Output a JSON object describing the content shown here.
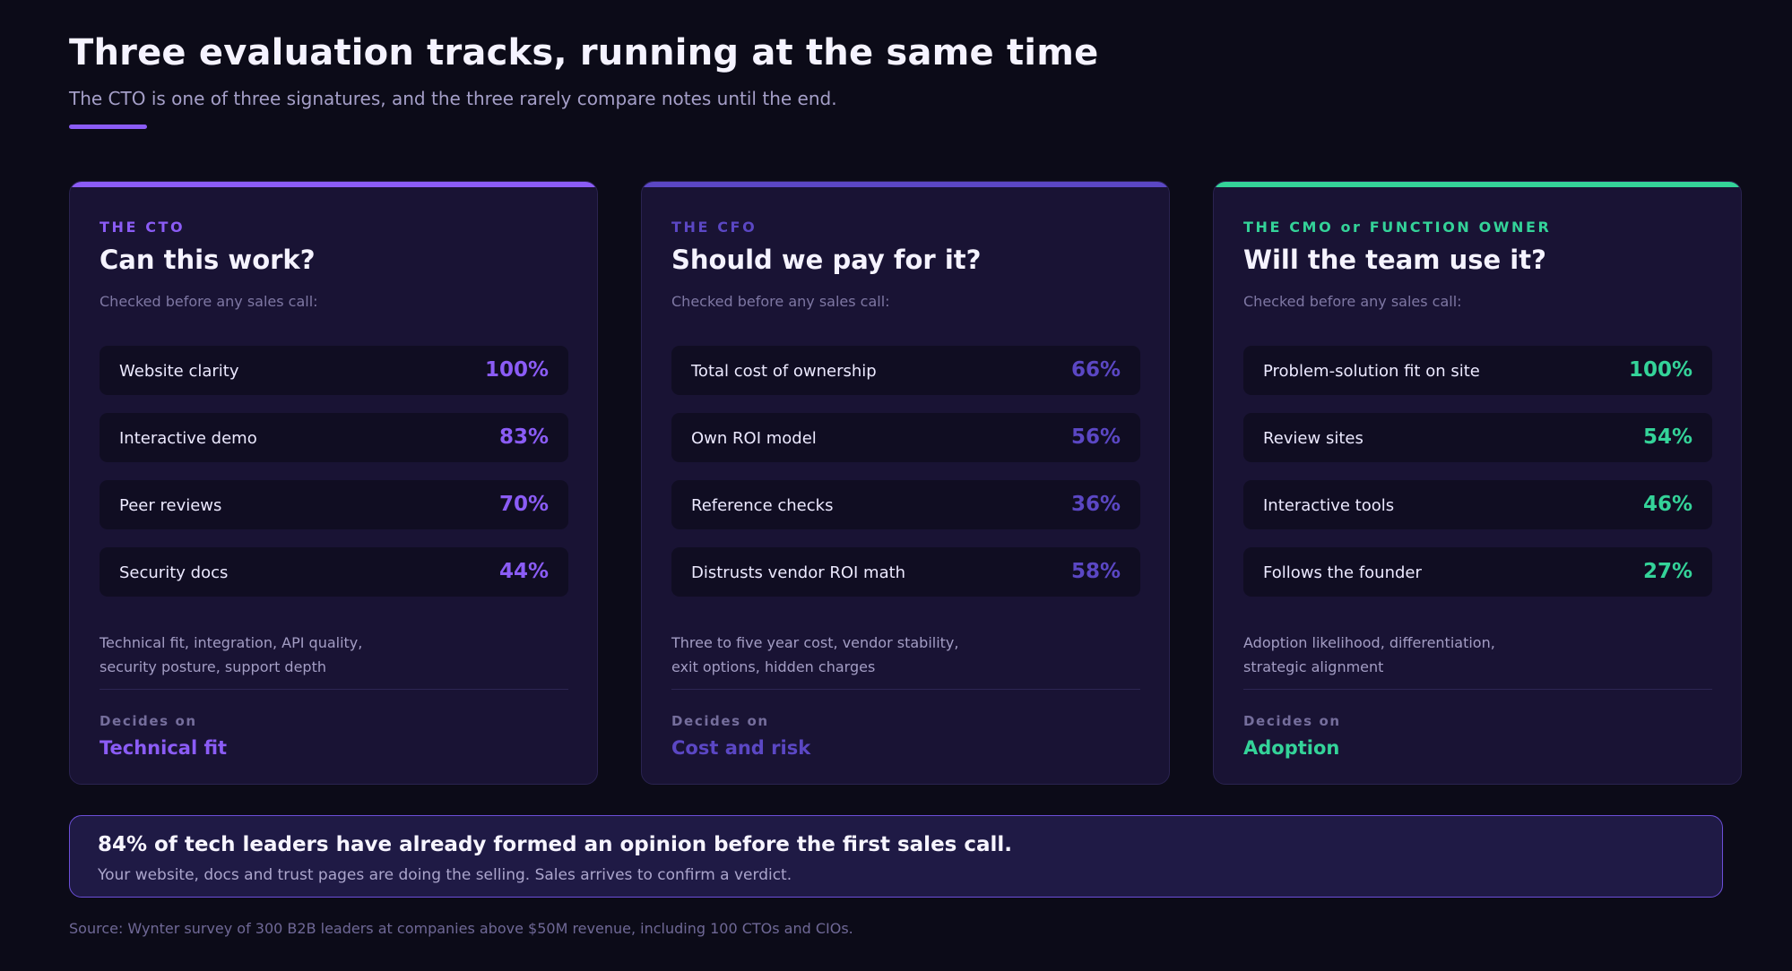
{
  "header": {
    "title": "Three evaluation tracks, running at the same time",
    "subtitle": "The CTO is one of three signatures, and the three rarely compare notes until the end.",
    "accent_color": "#8b5cf6"
  },
  "cards": [
    {
      "kicker": "THE CTO",
      "question": "Can this work?",
      "checked_label": "Checked before any sales call:",
      "accent_color": "#8b5cf6",
      "rows": [
        {
          "label": "Website clarity",
          "value": "100%"
        },
        {
          "label": "Interactive demo",
          "value": "83%"
        },
        {
          "label": "Peer reviews",
          "value": "70%"
        },
        {
          "label": "Security docs",
          "value": "44%"
        }
      ],
      "description_lines": [
        "Technical fit, integration, API quality,",
        "security posture, support depth"
      ],
      "decides_label": "Decides on",
      "decides_value": "Technical fit"
    },
    {
      "kicker": "THE CFO",
      "question": "Should we pay for it?",
      "checked_label": "Checked before any sales call:",
      "accent_color": "#5b47c4",
      "rows": [
        {
          "label": "Total cost of ownership",
          "value": "66%"
        },
        {
          "label": "Own ROI model",
          "value": "56%"
        },
        {
          "label": "Reference checks",
          "value": "36%"
        },
        {
          "label": "Distrusts vendor ROI math",
          "value": "58%"
        }
      ],
      "description_lines": [
        "Three to five year cost, vendor stability,",
        "exit options, hidden charges"
      ],
      "decides_label": "Decides on",
      "decides_value": "Cost and risk"
    },
    {
      "kicker": "THE CMO or FUNCTION OWNER",
      "question": "Will the team use it?",
      "checked_label": "Checked before any sales call:",
      "accent_color": "#34d399",
      "rows": [
        {
          "label": "Problem-solution fit on site",
          "value": "100%"
        },
        {
          "label": "Review sites",
          "value": "54%"
        },
        {
          "label": "Interactive tools",
          "value": "46%"
        },
        {
          "label": "Follows the founder",
          "value": "27%"
        }
      ],
      "description_lines": [
        "Adoption likelihood, differentiation,",
        "strategic alignment"
      ],
      "decides_label": "Decides on",
      "decides_value": "Adoption"
    }
  ],
  "callout": {
    "headline": "84% of tech leaders have already formed an opinion before the first sales call.",
    "body": "Your website, docs and trust pages are doing the selling. Sales arrives to confirm a verdict."
  },
  "source": "Source: Wynter survey of 300 B2B leaders at companies above $50M revenue, including 100 CTOs and CIOs."
}
